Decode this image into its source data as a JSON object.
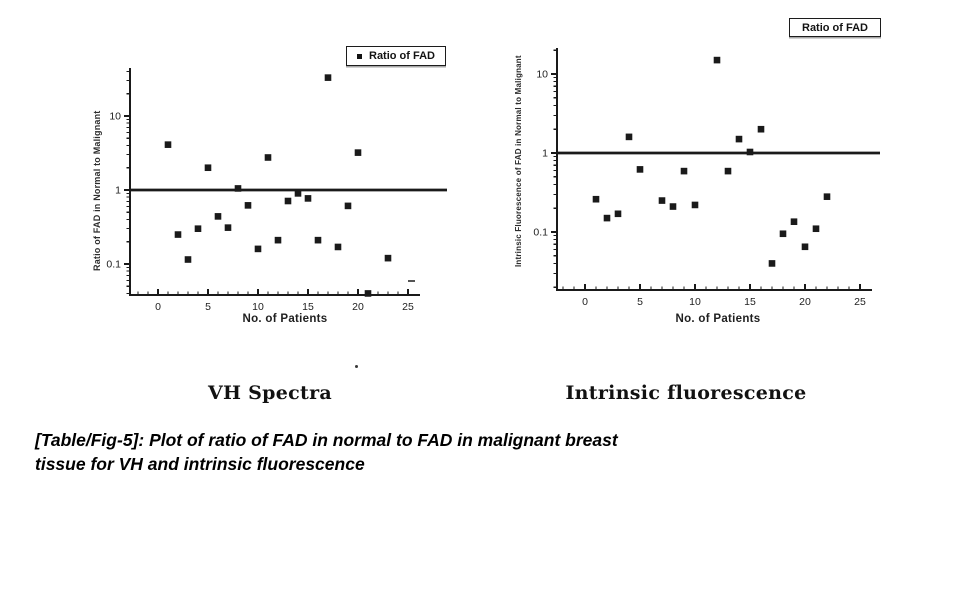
{
  "figure": {
    "caption_lines": [
      "[Table/Fig-5]: Plot of ratio of FAD in normal to FAD in malignant breast",
      "tissue for VH and intrinsic fluorescence"
    ],
    "ink_color": "#1c1c1c",
    "background_color": "#ffffff"
  },
  "chart_data": [
    {
      "type": "scatter",
      "title": "VH Spectra",
      "xlabel": "No. of Patients",
      "ylabel": "Ratio of FAD in Normal to Malignant",
      "legend": {
        "label": "Ratio of FAD",
        "show_marker": true,
        "position": "top-right"
      },
      "y_scale": "log",
      "x_ticks": [
        0,
        5,
        10,
        15,
        20,
        25
      ],
      "y_ticks": [
        "10",
        "1",
        "0.1"
      ],
      "y_tick_values": [
        10,
        1,
        0.1
      ],
      "xlim": [
        -2.8,
        26
      ],
      "ylim": [
        0.038,
        44
      ],
      "reference_line_y": 1,
      "grid": false,
      "marker": "square",
      "marker_color": "#1c1c1c",
      "points": [
        {
          "x": 1,
          "y": 4.1
        },
        {
          "x": 2,
          "y": 0.25
        },
        {
          "x": 3,
          "y": 0.115
        },
        {
          "x": 4,
          "y": 0.3
        },
        {
          "x": 5,
          "y": 2.0
        },
        {
          "x": 6,
          "y": 0.44
        },
        {
          "x": 7,
          "y": 0.31
        },
        {
          "x": 8,
          "y": 1.05
        },
        {
          "x": 9,
          "y": 0.62
        },
        {
          "x": 10,
          "y": 0.16
        },
        {
          "x": 11,
          "y": 2.75
        },
        {
          "x": 12,
          "y": 0.21
        },
        {
          "x": 13,
          "y": 0.71
        },
        {
          "x": 14,
          "y": 0.9
        },
        {
          "x": 15,
          "y": 0.77
        },
        {
          "x": 16,
          "y": 0.21
        },
        {
          "x": 17,
          "y": 33
        },
        {
          "x": 18,
          "y": 0.17
        },
        {
          "x": 19,
          "y": 0.61
        },
        {
          "x": 20,
          "y": 3.2
        },
        {
          "x": 21,
          "y": 0.04
        },
        {
          "x": 23,
          "y": 0.12
        }
      ]
    },
    {
      "type": "scatter",
      "title": "Intrinsic fluorescence",
      "xlabel": "No. of Patients",
      "ylabel": "Intrinsic Fluorescence of FAD in Normal to Malignant",
      "legend": {
        "label": "Ratio of FAD",
        "show_marker": false,
        "position": "top-right"
      },
      "y_scale": "log",
      "x_ticks": [
        0,
        5,
        10,
        15,
        20,
        25
      ],
      "y_ticks": [
        "10",
        "1",
        "0.1"
      ],
      "y_tick_values": [
        10,
        1,
        0.1
      ],
      "xlim": [
        -2.5,
        26
      ],
      "ylim": [
        0.019,
        22
      ],
      "reference_line_y": 1,
      "grid": false,
      "marker": "square",
      "marker_color": "#1c1c1c",
      "points": [
        {
          "x": 1,
          "y": 0.26
        },
        {
          "x": 2,
          "y": 0.15
        },
        {
          "x": 3,
          "y": 0.17
        },
        {
          "x": 4,
          "y": 1.6
        },
        {
          "x": 5,
          "y": 0.62
        },
        {
          "x": 7,
          "y": 0.25
        },
        {
          "x": 8,
          "y": 0.21
        },
        {
          "x": 9,
          "y": 0.59
        },
        {
          "x": 10,
          "y": 0.22
        },
        {
          "x": 12,
          "y": 15
        },
        {
          "x": 13,
          "y": 0.59
        },
        {
          "x": 14,
          "y": 1.5
        },
        {
          "x": 15,
          "y": 1.03
        },
        {
          "x": 16,
          "y": 2.0
        },
        {
          "x": 17,
          "y": 0.04
        },
        {
          "x": 18,
          "y": 0.095
        },
        {
          "x": 19,
          "y": 0.135
        },
        {
          "x": 20,
          "y": 0.065
        },
        {
          "x": 21,
          "y": 0.11
        },
        {
          "x": 22,
          "y": 0.28
        }
      ]
    }
  ]
}
